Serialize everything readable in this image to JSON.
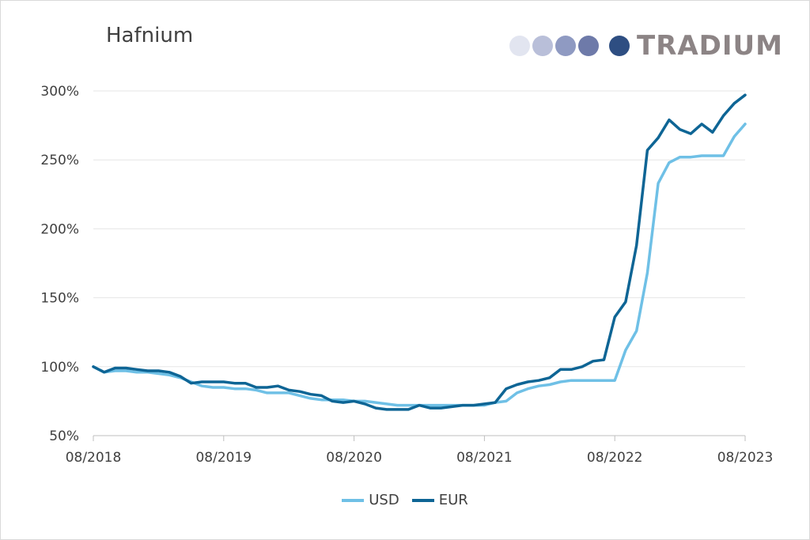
{
  "brand": {
    "name": "TRADIUM",
    "dot_colors": [
      "#e2e5f0",
      "#b9bfd9",
      "#8f9ac2",
      "#6e7aa9",
      "#2e4e82"
    ]
  },
  "chart_data": {
    "type": "line",
    "title": "Hafnium",
    "xlabel": "",
    "ylabel": "",
    "ylim": [
      50,
      300
    ],
    "y_ticks": [
      "50%",
      "100%",
      "150%",
      "200%",
      "250%",
      "300%"
    ],
    "y_tick_values": [
      50,
      100,
      150,
      200,
      250,
      300
    ],
    "x_ticks": [
      "08/2018",
      "08/2019",
      "08/2020",
      "08/2021",
      "08/2022",
      "08/2023"
    ],
    "x_tick_index": [
      0,
      12,
      24,
      36,
      48,
      60
    ],
    "grid": true,
    "legend": "bottom",
    "series": [
      {
        "name": "USD",
        "color": "#6fc0e6",
        "values": [
          100,
          96,
          97,
          97,
          96,
          96,
          95,
          94,
          92,
          89,
          86,
          85,
          85,
          84,
          84,
          83,
          81,
          81,
          81,
          79,
          77,
          76,
          76,
          76,
          75,
          75,
          74,
          73,
          72,
          72,
          72,
          72,
          72,
          72,
          72,
          72,
          72,
          74,
          75,
          81,
          84,
          86,
          87,
          89,
          90,
          90,
          90,
          90,
          90,
          112,
          126,
          168,
          233,
          248,
          252,
          252,
          253,
          253,
          253,
          267,
          276
        ]
      },
      {
        "name": "EUR",
        "color": "#0e6595",
        "values": [
          100,
          96,
          99,
          99,
          98,
          97,
          97,
          96,
          93,
          88,
          89,
          89,
          89,
          88,
          88,
          85,
          85,
          86,
          83,
          82,
          80,
          79,
          75,
          74,
          75,
          73,
          70,
          69,
          69,
          69,
          72,
          70,
          70,
          71,
          72,
          72,
          73,
          74,
          84,
          87,
          89,
          90,
          92,
          98,
          98,
          100,
          104,
          105,
          136,
          147,
          188,
          257,
          266,
          279,
          272,
          269,
          276,
          270,
          282,
          291,
          297
        ]
      }
    ]
  }
}
